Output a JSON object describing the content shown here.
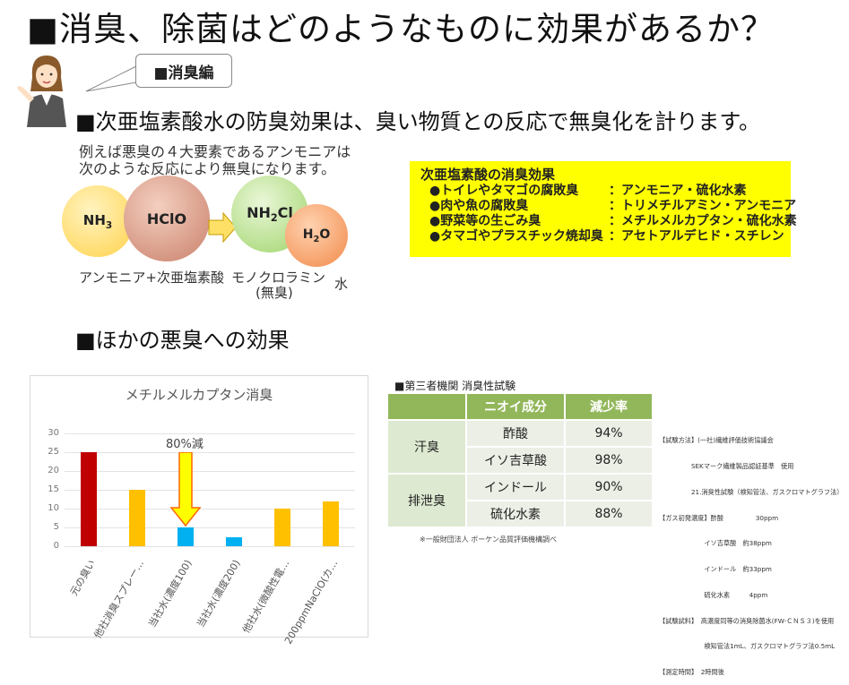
{
  "title": "■消臭、除菌はどのようなものに効果があるか？",
  "bubble_label": "■消臭編",
  "subtitle1": "■次亜塩素酸水の防臭効果は、臭い物質との反応で無臭化を計ります。",
  "intro_lines": [
    "例えば悪臭の４大要素であるアンモニアは",
    "次のような反応により無臭になります。"
  ],
  "reaction": {
    "nh3": "NH3",
    "hclo": "HClO",
    "nh2cl": "NH2Cl",
    "h2o": "H2O",
    "label_left": "アンモニア+次亜塩素酸",
    "label_mid1": "モノクロラミン",
    "label_mid2": "(無臭)",
    "label_right": "水"
  },
  "effects": {
    "title": "次亜塩素酸の消臭効果",
    "rows": [
      {
        "item": "●トイレやタマゴの腐敗臭",
        "value": "：アンモニア・硫化水素"
      },
      {
        "item": "●肉や魚の腐敗臭",
        "value": "：トリメチルアミン・アンモニア"
      },
      {
        "item": "●野菜等の生ごみ臭",
        "value": "：メチルメルカプタン・硫化水素"
      },
      {
        "item": "●タマゴやプラスチック焼却臭",
        "value": "：アセトアルデヒド・スチレン"
      }
    ]
  },
  "subtitle2": "■ほかの悪臭への効果",
  "chart_data": {
    "type": "bar",
    "title": "メチルメルカプタン消臭",
    "categories": [
      "元の臭い",
      "他社消臭スプレー…",
      "当社水(濃度100)",
      "当社水(濃度200)",
      "他社水(微酸性電…",
      "200ppmNaClO(カ…"
    ],
    "values": [
      25,
      15,
      5,
      2.5,
      10,
      12
    ],
    "colors": [
      "#c00000",
      "#ffc000",
      "#00b0f0",
      "#00b0f0",
      "#ffc000",
      "#ffc000"
    ],
    "ylim": [
      0,
      30
    ],
    "yticks": [
      "0",
      "5",
      "10",
      "15",
      "20",
      "25",
      "30"
    ],
    "annotation": "80%減",
    "arrow_color": "#ffff00"
  },
  "table": {
    "title": "■第三者機関 消臭性試験",
    "headers": [
      "",
      "ニオイ成分",
      "減少率"
    ],
    "groups": [
      {
        "name": "汗臭",
        "rows": [
          {
            "component": "酢酸",
            "rate": "94%"
          },
          {
            "component": "イソ吉草酸",
            "rate": "98%"
          }
        ]
      },
      {
        "name": "排泄臭",
        "rows": [
          {
            "component": "インドール",
            "rate": "90%"
          },
          {
            "component": "硫化水素",
            "rate": "88%"
          }
        ]
      }
    ],
    "note": "※一般財団法人 ボーケン品質評価機構調べ"
  },
  "method_lines": [
    "【試験方法】(一社)繊維評価技術協議会",
    "　　　　　SEKマーク繊維製品認証基準　使用",
    "　　　　　21.消臭性試験（検知管法、ガスクロマトグラフ法）",
    "【ガス初発濃度】酢酸　　　　　30ppm",
    "　　　　　　　イソ吉草酸　約38ppm",
    "　　　　　　　インドール　約33ppm",
    "　　　　　　　硫化水素　　　4ppm",
    "【試験試料】　高濃度同等の消臭除菌水(FW-ＣＮＳ３)を使用",
    "　　　　　　　検知管法1mL、ガスクロマトグラフ法0.5mL",
    "【測定時間】　2時間後"
  ]
}
